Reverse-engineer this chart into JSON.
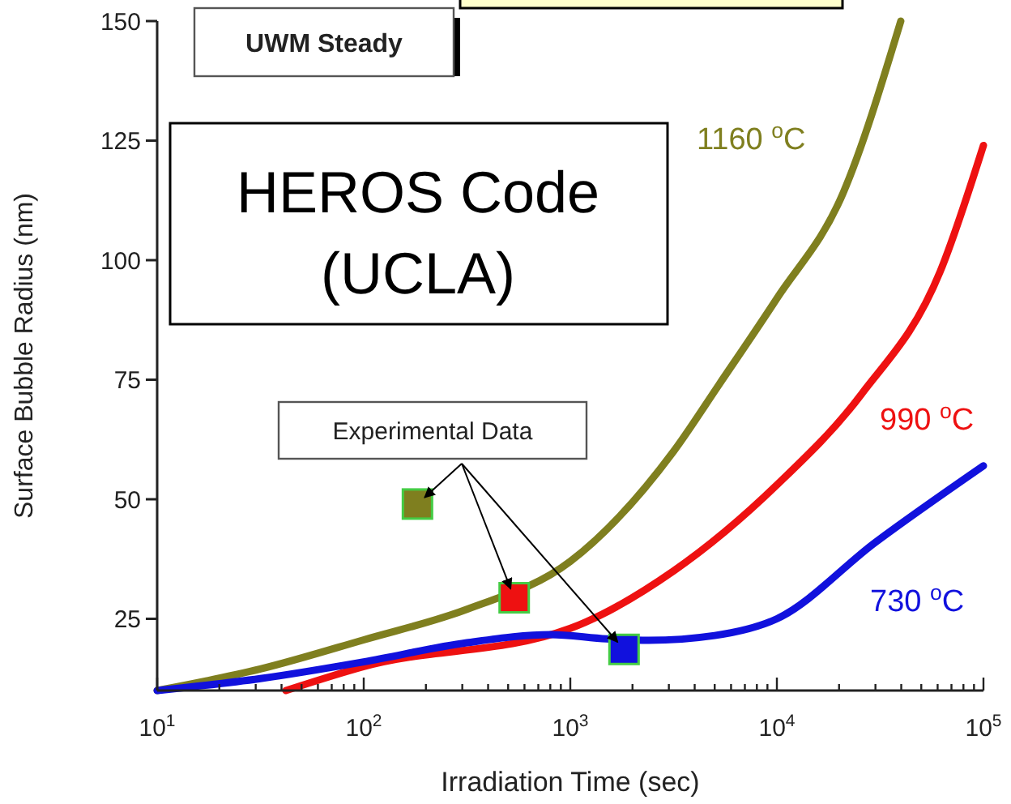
{
  "chart_data": {
    "type": "line",
    "xlabel": "Irradiation Time (sec)",
    "ylabel": "Surface Bubble Radius (nm)",
    "log": "x",
    "xlim": [
      10,
      100000
    ],
    "ylim": [
      10,
      150
    ],
    "xticks": [
      {
        "value": 10,
        "label": "10$^{1}$"
      },
      {
        "value": 20,
        "label": null
      },
      {
        "value": 30,
        "label": null
      },
      {
        "value": 40,
        "label": null
      },
      {
        "value": 50,
        "label": null
      },
      {
        "value": 60,
        "label": null
      },
      {
        "value": 70,
        "label": null
      },
      {
        "value": 80,
        "label": null
      },
      {
        "value": 90,
        "label": null
      },
      {
        "value": 100,
        "label": "10$^{2}$"
      },
      {
        "value": 200,
        "label": null
      },
      {
        "value": 300,
        "label": null
      },
      {
        "value": 400,
        "label": null
      },
      {
        "value": 500,
        "label": null
      },
      {
        "value": 600,
        "label": null
      },
      {
        "value": 700,
        "label": null
      },
      {
        "value": 800,
        "label": null
      },
      {
        "value": 900,
        "label": null
      },
      {
        "value": 1000,
        "label": "10$^{3}$"
      },
      {
        "value": 2000,
        "label": null
      },
      {
        "value": 3000,
        "label": null
      },
      {
        "value": 4000,
        "label": null
      },
      {
        "value": 5000,
        "label": null
      },
      {
        "value": 6000,
        "label": null
      },
      {
        "value": 7000,
        "label": null
      },
      {
        "value": 8000,
        "label": null
      },
      {
        "value": 9000,
        "label": null
      },
      {
        "value": 10000,
        "label": "10$^{4}$"
      },
      {
        "value": 20000,
        "label": null
      },
      {
        "value": 30000,
        "label": null
      },
      {
        "value": 40000,
        "label": null
      },
      {
        "value": 50000,
        "label": null
      },
      {
        "value": 60000,
        "label": null
      },
      {
        "value": 70000,
        "label": null
      },
      {
        "value": 80000,
        "label": null
      },
      {
        "value": 90000,
        "label": null
      },
      {
        "value": 100000,
        "label": "10$^{5}$"
      }
    ],
    "yticks": [
      25,
      50,
      75,
      100,
      125,
      150
    ],
    "grid": false,
    "line_style": "solid",
    "series": [
      {
        "name": "1160 $^{o}$C",
        "color": "#7f7f1f",
        "x": [
          10,
          31.6,
          100,
          316,
          1000,
          3160,
          5250,
          10000,
          20900,
          39800
        ],
        "values": [
          10,
          14.5,
          20.6,
          27,
          37,
          60,
          74,
          92,
          114,
          150
        ]
      },
      {
        "name": "990 $^{o}$C",
        "color": "#ee1111",
        "x": [
          42,
          100,
          1000,
          3160,
          10000,
          25700,
          61700,
          100000
        ],
        "values": [
          10,
          15,
          23,
          35,
          53,
          72,
          97.6,
          124
        ]
      },
      {
        "name": "730 $^{o}$C",
        "color": "#1111dd",
        "x": [
          10,
          31.6,
          100,
          316,
          800,
          1500,
          2400,
          5000,
          10000,
          30000,
          100000
        ],
        "values": [
          10,
          12.5,
          16,
          20,
          21.7,
          20.8,
          20.5,
          21.5,
          25,
          41,
          57
        ]
      },
      {
        "type": "scatter",
        "marker": "square",
        "x": [
          182,
          535,
          1820
        ],
        "values": [
          49,
          29.4,
          18.6
        ],
        "colors": [
          "#7f7f1f",
          "#ee1111",
          "#1111dd"
        ]
      }
    ],
    "annotations": [
      "UWM Steady",
      "HEROS Code (UCLA)",
      {
        "text": "Experimental Data",
        "x": 535,
        "y": 29.4
      }
    ]
  }
}
